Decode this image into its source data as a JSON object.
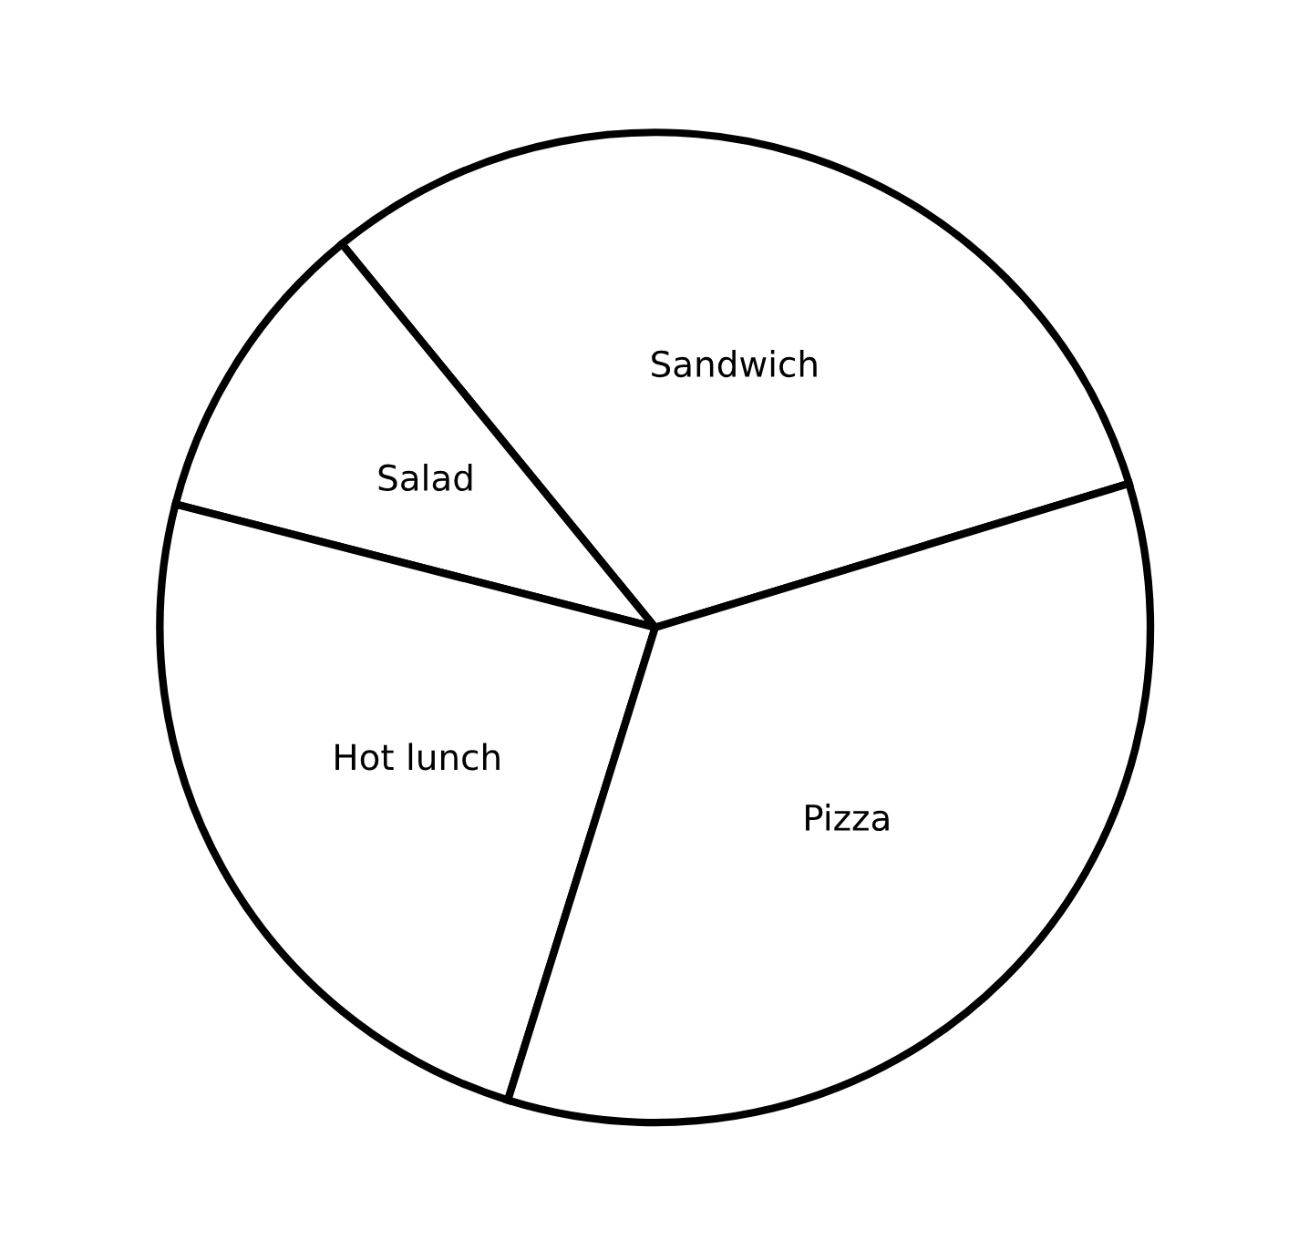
{
  "chart_data": {
    "type": "pie",
    "categories": [
      "Sandwich",
      "Salad",
      "Hot lunch",
      "Pizza"
    ],
    "values": [
      31.2,
      10.1,
      24.2,
      34.5
    ],
    "colors": [
      "#ffffff",
      "#ffffff",
      "#ffffff",
      "#ffffff"
    ]
  }
}
